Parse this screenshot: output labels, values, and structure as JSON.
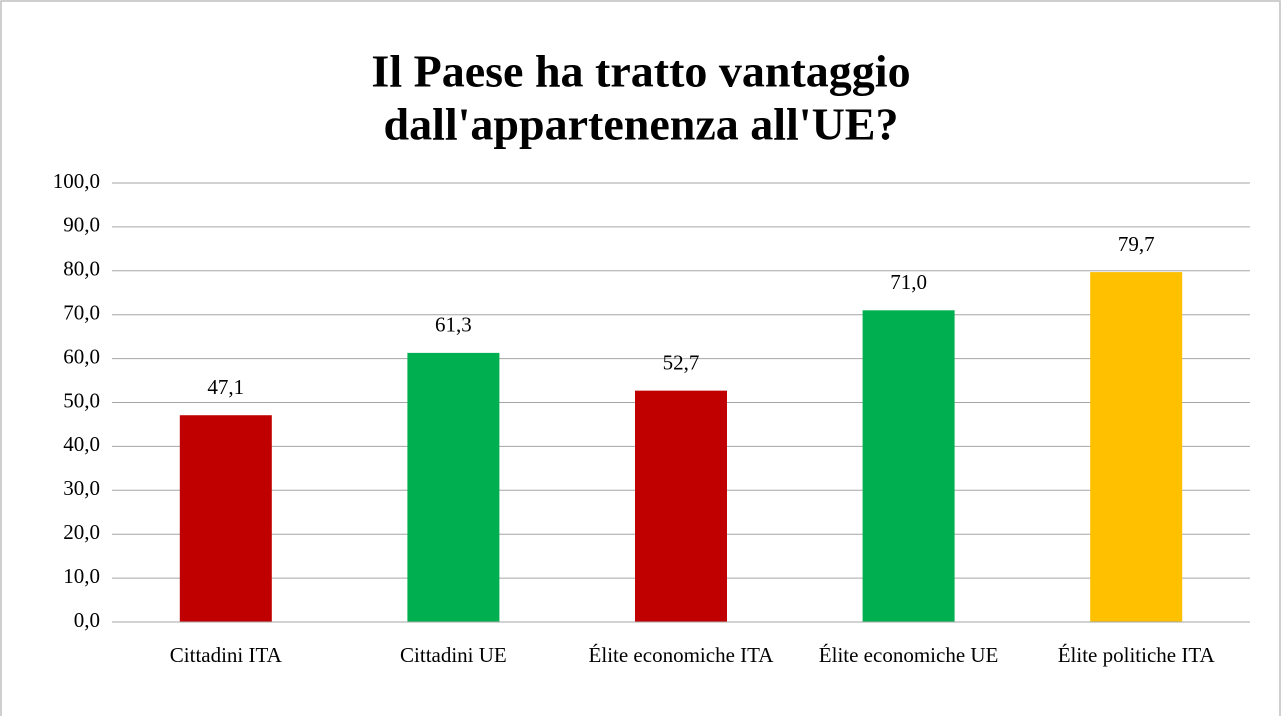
{
  "chart_data": {
    "type": "bar",
    "title": [
      "Il Paese ha tratto vantaggio",
      "dall'appartenenza all'UE?"
    ],
    "categories": [
      "Cittadini ITA",
      "Cittadini UE",
      "Élite economiche ITA",
      "Élite economiche UE",
      "Élite politiche ITA"
    ],
    "values": [
      47.1,
      61.3,
      52.7,
      71.0,
      79.7
    ],
    "value_labels": [
      "47,1",
      "61,3",
      "52,7",
      "71,0",
      "79,7"
    ],
    "colors": [
      "#c00000",
      "#00b050",
      "#c00000",
      "#00b050",
      "#ffc000"
    ],
    "ylim": [
      0,
      100
    ],
    "yticks": [
      {
        "value": 0,
        "label": "0,0"
      },
      {
        "value": 10,
        "label": "10,0"
      },
      {
        "value": 20,
        "label": "20,0"
      },
      {
        "value": 30,
        "label": "30,0"
      },
      {
        "value": 40,
        "label": "40,0"
      },
      {
        "value": 50,
        "label": "50,0"
      },
      {
        "value": 60,
        "label": "60,0"
      },
      {
        "value": 70,
        "label": "70,0"
      },
      {
        "value": 80,
        "label": "80,0"
      },
      {
        "value": 90,
        "label": "90,0"
      },
      {
        "value": 100,
        "label": "100,0"
      }
    ],
    "grid": true
  }
}
